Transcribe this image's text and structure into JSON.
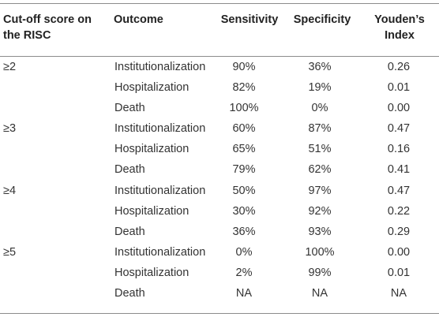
{
  "header": {
    "cutoff_label": "Cut-off score on the RISC",
    "outcome_label": "Outcome",
    "sensitivity_label": "Sensitivity",
    "specificity_label": "Specificity",
    "youden_label": "Youden’s Index"
  },
  "rows": [
    {
      "cutoff": "≥2",
      "outcome": "Institutionalization",
      "sensitivity": "90%",
      "specificity": "36%",
      "youden": "0.26"
    },
    {
      "cutoff": "",
      "outcome": "Hospitalization",
      "sensitivity": "82%",
      "specificity": "19%",
      "youden": "0.01"
    },
    {
      "cutoff": "",
      "outcome": "Death",
      "sensitivity": "100%",
      "specificity": "0%",
      "youden": "0.00"
    },
    {
      "cutoff": "≥3",
      "outcome": "Institutionalization",
      "sensitivity": "60%",
      "specificity": "87%",
      "youden": "0.47"
    },
    {
      "cutoff": "",
      "outcome": "Hospitalization",
      "sensitivity": "65%",
      "specificity": "51%",
      "youden": "0.16"
    },
    {
      "cutoff": "",
      "outcome": "Death",
      "sensitivity": "79%",
      "specificity": "62%",
      "youden": "0.41"
    },
    {
      "cutoff": "≥4",
      "outcome": "Institutionalization",
      "sensitivity": "50%",
      "specificity": "97%",
      "youden": "0.47"
    },
    {
      "cutoff": "",
      "outcome": "Hospitalization",
      "sensitivity": "30%",
      "specificity": "92%",
      "youden": "0.22"
    },
    {
      "cutoff": "",
      "outcome": "Death",
      "sensitivity": "36%",
      "specificity": "93%",
      "youden": "0.29"
    },
    {
      "cutoff": "≥5",
      "outcome": "Institutionalization",
      "sensitivity": "0%",
      "specificity": "100%",
      "youden": "0.00"
    },
    {
      "cutoff": "",
      "outcome": "Hospitalization",
      "sensitivity": "2%",
      "specificity": "99%",
      "youden": "0.01"
    },
    {
      "cutoff": "",
      "outcome": "Death",
      "sensitivity": "NA",
      "specificity": "NA",
      "youden": "NA"
    }
  ]
}
